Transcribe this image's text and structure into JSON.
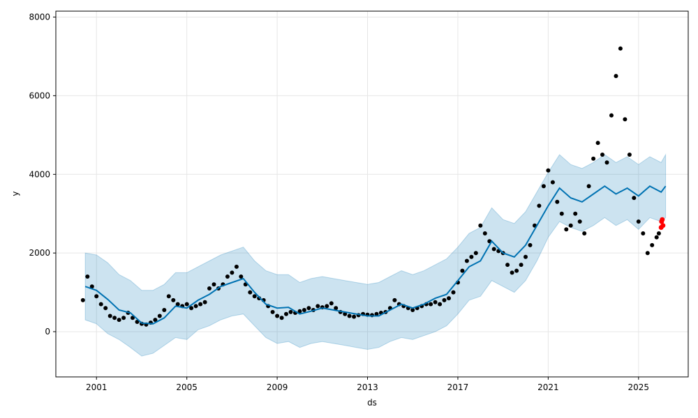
{
  "chart_data": {
    "type": "line",
    "title": "",
    "xlabel": "ds",
    "ylabel": "y",
    "xlim": [
      1999.2,
      2027.2
    ],
    "ylim": [
      -1150,
      8150
    ],
    "x_ticks": [
      2001,
      2005,
      2009,
      2013,
      2017,
      2021,
      2025
    ],
    "x_tick_labels": [
      "2001",
      "2005",
      "2009",
      "2013",
      "2017",
      "2021",
      "2025"
    ],
    "y_ticks": [
      0,
      2000,
      4000,
      6000,
      8000
    ],
    "y_tick_labels": [
      "0",
      "2000",
      "4000",
      "6000",
      "8000"
    ],
    "grid": true,
    "colors": {
      "forecast": "#0072B2",
      "interval": "#0072B2",
      "observed": "#000000",
      "holdout": "#ff0000"
    },
    "forecast_x": [
      2000.5,
      2001,
      2001.5,
      2002,
      2002.5,
      2003,
      2003.5,
      2004,
      2004.5,
      2005,
      2005.5,
      2006,
      2006.5,
      2007,
      2007.5,
      2008,
      2008.5,
      2009,
      2009.5,
      2010,
      2010.5,
      2011,
      2011.5,
      2012,
      2012.5,
      2013,
      2013.5,
      2014,
      2014.5,
      2015,
      2015.5,
      2016,
      2016.5,
      2017,
      2017.5,
      2018,
      2018.5,
      2019,
      2019.5,
      2020,
      2020.5,
      2021,
      2021.5,
      2022,
      2022.5,
      2023,
      2023.5,
      2024,
      2024.5,
      2025,
      2025.5,
      2026,
      2026.2
    ],
    "series": [
      {
        "name": "",
        "values": [
          1150,
          1050,
          820,
          550,
          480,
          220,
          200,
          350,
          650,
          600,
          800,
          950,
          1150,
          1250,
          1350,
          1000,
          700,
          600,
          620,
          450,
          520,
          600,
          550,
          500,
          450,
          400,
          400,
          550,
          700,
          600,
          700,
          850,
          950,
          1300,
          1650,
          1800,
          2300,
          2000,
          1900,
          2200,
          2700,
          3200,
          3650,
          3400,
          3300,
          3500,
          3700,
          3500,
          3650,
          3450,
          3700,
          3550,
          3700
        ],
        "lower": [
          300,
          200,
          -50,
          -200,
          -400,
          -620,
          -550,
          -350,
          -150,
          -200,
          50,
          150,
          300,
          400,
          450,
          150,
          -150,
          -300,
          -250,
          -400,
          -300,
          -250,
          -300,
          -350,
          -400,
          -450,
          -400,
          -250,
          -150,
          -200,
          -100,
          0,
          150,
          450,
          800,
          900,
          1300,
          1150,
          1000,
          1300,
          1800,
          2400,
          2800,
          2650,
          2550,
          2700,
          2900,
          2700,
          2850,
          2600,
          2900,
          2800,
          2900
        ],
        "upper": [
          2000,
          1950,
          1750,
          1450,
          1300,
          1050,
          1050,
          1200,
          1500,
          1500,
          1650,
          1800,
          1950,
          2050,
          2150,
          1800,
          1550,
          1450,
          1450,
          1250,
          1350,
          1400,
          1350,
          1300,
          1250,
          1200,
          1250,
          1400,
          1550,
          1450,
          1550,
          1700,
          1850,
          2150,
          2500,
          2650,
          3150,
          2850,
          2750,
          3050,
          3550,
          4050,
          4500,
          4250,
          4150,
          4300,
          4500,
          4300,
          4450,
          4250,
          4450,
          4300,
          4500
        ]
      }
    ],
    "observed": {
      "x": [
        2000.4,
        2000.6,
        2000.8,
        2001.0,
        2001.2,
        2001.4,
        2001.6,
        2001.8,
        2002.0,
        2002.2,
        2002.4,
        2002.6,
        2002.8,
        2003.0,
        2003.2,
        2003.4,
        2003.6,
        2003.8,
        2004.0,
        2004.2,
        2004.4,
        2004.6,
        2004.8,
        2005.0,
        2005.2,
        2005.4,
        2005.6,
        2005.8,
        2006.0,
        2006.2,
        2006.4,
        2006.6,
        2006.8,
        2007.0,
        2007.2,
        2007.4,
        2007.6,
        2007.8,
        2008.0,
        2008.2,
        2008.4,
        2008.6,
        2008.8,
        2009.0,
        2009.2,
        2009.4,
        2009.6,
        2009.8,
        2010.0,
        2010.2,
        2010.4,
        2010.6,
        2010.8,
        2011.0,
        2011.2,
        2011.4,
        2011.6,
        2011.8,
        2012.0,
        2012.2,
        2012.4,
        2012.6,
        2012.8,
        2013.0,
        2013.2,
        2013.4,
        2013.6,
        2013.8,
        2014.0,
        2014.2,
        2014.4,
        2014.6,
        2014.8,
        2015.0,
        2015.2,
        2015.4,
        2015.6,
        2015.8,
        2016.0,
        2016.2,
        2016.4,
        2016.6,
        2016.8,
        2017.0,
        2017.2,
        2017.4,
        2017.6,
        2017.8,
        2018.0,
        2018.2,
        2018.4,
        2018.6,
        2018.8,
        2019.0,
        2019.2,
        2019.4,
        2019.6,
        2019.8,
        2020.0,
        2020.2,
        2020.4,
        2020.6,
        2020.8,
        2021.0,
        2021.2,
        2021.4,
        2021.6,
        2021.8,
        2022.0,
        2022.2,
        2022.4,
        2022.6,
        2022.8,
        2023.0,
        2023.2,
        2023.4,
        2023.6,
        2023.8,
        2024.0,
        2024.2,
        2024.4,
        2024.6,
        2024.8,
        2025.0,
        2025.2,
        2025.4,
        2025.6,
        2025.8,
        2025.9
      ],
      "y": [
        800,
        1400,
        1150,
        900,
        700,
        600,
        400,
        350,
        300,
        350,
        480,
        350,
        250,
        200,
        180,
        230,
        300,
        400,
        550,
        900,
        800,
        700,
        650,
        700,
        600,
        650,
        700,
        750,
        1100,
        1200,
        1100,
        1200,
        1400,
        1500,
        1650,
        1400,
        1200,
        1000,
        900,
        850,
        800,
        650,
        500,
        400,
        350,
        450,
        500,
        480,
        520,
        550,
        600,
        550,
        650,
        620,
        650,
        720,
        600,
        500,
        450,
        400,
        380,
        420,
        450,
        430,
        420,
        450,
        480,
        500,
        600,
        800,
        700,
        650,
        600,
        550,
        600,
        650,
        700,
        700,
        750,
        700,
        800,
        850,
        1000,
        1250,
        1550,
        1800,
        1900,
        2000,
        2700,
        2500,
        2300,
        2100,
        2050,
        2000,
        1700,
        1500,
        1550,
        1700,
        1900,
        2200,
        2700,
        3200,
        3700,
        4100,
        3800,
        3300,
        3000,
        2600,
        2700,
        3000,
        2800,
        2500,
        3700,
        4400,
        4800,
        4500,
        4300,
        5500,
        6500,
        7200,
        5400,
        4500,
        3400,
        2800,
        2500,
        2000,
        2200,
        2400,
        2500
      ]
    },
    "holdout": {
      "x": [
        2026.0,
        2026.02,
        2026.05,
        2026.08
      ],
      "y": [
        2650,
        2800,
        2850,
        2700
      ]
    }
  }
}
